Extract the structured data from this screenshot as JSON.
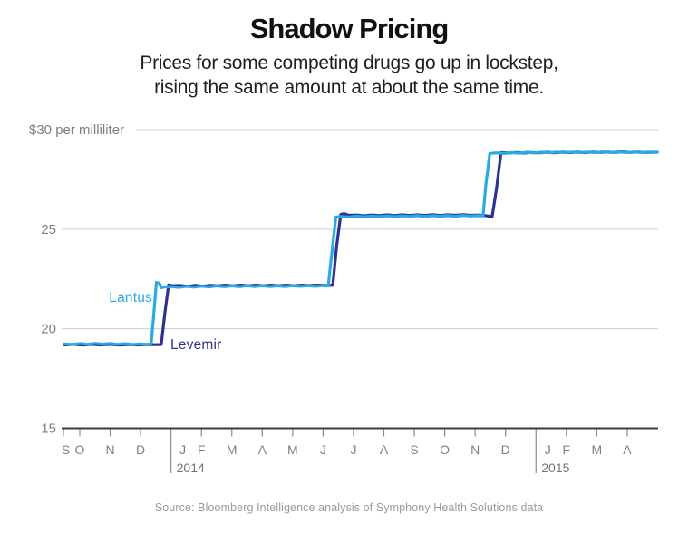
{
  "header": {
    "title": "Shadow Pricing",
    "subtitle_line1": "Prices for some competing drugs go up in lockstep,",
    "subtitle_line2": "rising the same amount at about the same time."
  },
  "source": "Source: Bloomberg Intelligence analysis of Symphony Health Solutions data",
  "chart_data": {
    "type": "line",
    "title": "Shadow Pricing",
    "ylabel": "$ per milliliter",
    "xlabel": "",
    "ylim": [
      15,
      30
    ],
    "grid": "horizontal",
    "legend_position": "inline-labels",
    "yticks": [
      {
        "value": 30,
        "label": "$30 per milliliter"
      },
      {
        "value": 25,
        "label": "25"
      },
      {
        "value": 20,
        "label": "20"
      },
      {
        "value": 15,
        "label": "15"
      }
    ],
    "x_axis": {
      "note": "months Sep 2013 - Apr 2015",
      "groups": [
        {
          "year": "",
          "months": [
            "S",
            "O",
            "N",
            "D"
          ]
        },
        {
          "year": "2014",
          "months": [
            "J",
            "F",
            "M",
            "A",
            "M",
            "J",
            "J",
            "A",
            "S",
            "O",
            "N",
            "D"
          ]
        },
        {
          "year": "2015",
          "months": [
            "J",
            "F",
            "M",
            "A"
          ]
        }
      ]
    },
    "series": [
      {
        "name": "Lantus",
        "color": "#29ABE2",
        "points": [
          [
            0.5,
            19.24
          ],
          [
            0.75,
            19.21
          ],
          [
            1.0,
            19.26
          ],
          [
            1.25,
            19.22
          ],
          [
            1.5,
            19.27
          ],
          [
            1.75,
            19.23
          ],
          [
            2.0,
            19.26
          ],
          [
            2.25,
            19.22
          ],
          [
            2.5,
            19.25
          ],
          [
            2.75,
            19.21
          ],
          [
            3.0,
            19.24
          ],
          [
            3.2,
            19.21
          ],
          [
            3.35,
            19.24
          ],
          [
            3.42,
            20.5
          ],
          [
            3.52,
            22.33
          ],
          [
            3.62,
            22.28
          ],
          [
            3.68,
            22.06
          ],
          [
            3.8,
            22.1
          ],
          [
            4.0,
            22.12
          ],
          [
            4.25,
            22.08
          ],
          [
            4.5,
            22.13
          ],
          [
            4.75,
            22.09
          ],
          [
            5.0,
            22.14
          ],
          [
            5.25,
            22.1
          ],
          [
            5.5,
            22.15
          ],
          [
            5.75,
            22.11
          ],
          [
            6.0,
            22.15
          ],
          [
            6.25,
            22.11
          ],
          [
            6.5,
            22.16
          ],
          [
            6.75,
            22.12
          ],
          [
            7.0,
            22.16
          ],
          [
            7.25,
            22.12
          ],
          [
            7.5,
            22.15
          ],
          [
            7.75,
            22.12
          ],
          [
            8.0,
            22.16
          ],
          [
            8.25,
            22.13
          ],
          [
            8.5,
            22.16
          ],
          [
            8.75,
            22.13
          ],
          [
            9.0,
            22.16
          ],
          [
            9.17,
            22.15
          ],
          [
            9.3,
            24.0
          ],
          [
            9.42,
            25.6
          ],
          [
            9.6,
            25.64
          ],
          [
            9.85,
            25.61
          ],
          [
            10.1,
            25.66
          ],
          [
            10.35,
            25.62
          ],
          [
            10.6,
            25.66
          ],
          [
            10.85,
            25.63
          ],
          [
            11.1,
            25.67
          ],
          [
            11.35,
            25.63
          ],
          [
            11.6,
            25.67
          ],
          [
            11.85,
            25.64
          ],
          [
            12.1,
            25.68
          ],
          [
            12.35,
            25.64
          ],
          [
            12.6,
            25.68
          ],
          [
            12.85,
            25.65
          ],
          [
            13.1,
            25.68
          ],
          [
            13.35,
            25.65
          ],
          [
            13.6,
            25.69
          ],
          [
            13.85,
            25.66
          ],
          [
            14.1,
            25.68
          ],
          [
            14.26,
            25.67
          ],
          [
            14.35,
            27.2
          ],
          [
            14.48,
            28.8
          ],
          [
            14.7,
            28.83
          ],
          [
            14.95,
            28.8
          ],
          [
            15.2,
            28.85
          ],
          [
            15.45,
            28.81
          ],
          [
            15.7,
            28.86
          ],
          [
            15.95,
            28.82
          ],
          [
            16.2,
            28.86
          ],
          [
            16.45,
            28.83
          ],
          [
            16.7,
            28.87
          ],
          [
            16.95,
            28.83
          ],
          [
            17.2,
            28.87
          ],
          [
            17.45,
            28.84
          ],
          [
            17.7,
            28.87
          ],
          [
            17.95,
            28.84
          ],
          [
            18.2,
            28.88
          ],
          [
            18.45,
            28.85
          ],
          [
            18.7,
            28.88
          ],
          [
            18.95,
            28.85
          ],
          [
            19.2,
            28.87
          ],
          [
            19.45,
            28.85
          ],
          [
            19.7,
            28.87
          ],
          [
            19.99,
            28.86
          ]
        ]
      },
      {
        "name": "Levemir",
        "color": "#2E3192",
        "points": [
          [
            0.5,
            19.19
          ],
          [
            0.8,
            19.22
          ],
          [
            1.1,
            19.18
          ],
          [
            1.4,
            19.22
          ],
          [
            1.7,
            19.19
          ],
          [
            2.0,
            19.22
          ],
          [
            2.3,
            19.18
          ],
          [
            2.6,
            19.21
          ],
          [
            2.9,
            19.19
          ],
          [
            3.2,
            19.21
          ],
          [
            3.5,
            19.2
          ],
          [
            3.68,
            19.21
          ],
          [
            3.8,
            20.8
          ],
          [
            3.92,
            22.2
          ],
          [
            4.05,
            22.16
          ],
          [
            4.3,
            22.17
          ],
          [
            4.55,
            22.13
          ],
          [
            4.8,
            22.18
          ],
          [
            5.05,
            22.14
          ],
          [
            5.3,
            22.18
          ],
          [
            5.55,
            22.15
          ],
          [
            5.8,
            22.19
          ],
          [
            6.05,
            22.15
          ],
          [
            6.3,
            22.19
          ],
          [
            6.55,
            22.16
          ],
          [
            6.8,
            22.19
          ],
          [
            7.05,
            22.16
          ],
          [
            7.3,
            22.19
          ],
          [
            7.55,
            22.16
          ],
          [
            7.8,
            22.19
          ],
          [
            8.05,
            22.16
          ],
          [
            8.3,
            22.19
          ],
          [
            8.55,
            22.17
          ],
          [
            8.8,
            22.19
          ],
          [
            9.05,
            22.18
          ],
          [
            9.32,
            22.18
          ],
          [
            9.45,
            24.2
          ],
          [
            9.58,
            25.75
          ],
          [
            9.7,
            25.78
          ],
          [
            9.85,
            25.7
          ],
          [
            10.1,
            25.71
          ],
          [
            10.35,
            25.67
          ],
          [
            10.6,
            25.71
          ],
          [
            10.85,
            25.68
          ],
          [
            11.1,
            25.72
          ],
          [
            11.35,
            25.68
          ],
          [
            11.6,
            25.72
          ],
          [
            11.85,
            25.69
          ],
          [
            12.1,
            25.72
          ],
          [
            12.35,
            25.69
          ],
          [
            12.6,
            25.73
          ],
          [
            12.85,
            25.69
          ],
          [
            13.1,
            25.72
          ],
          [
            13.35,
            25.7
          ],
          [
            13.6,
            25.73
          ],
          [
            13.85,
            25.7
          ],
          [
            14.1,
            25.71
          ],
          [
            14.35,
            25.68
          ],
          [
            14.56,
            25.63
          ],
          [
            14.7,
            27.0
          ],
          [
            14.85,
            28.84
          ],
          [
            15.1,
            28.82
          ],
          [
            15.35,
            28.85
          ],
          [
            15.6,
            28.82
          ],
          [
            15.85,
            28.85
          ],
          [
            16.1,
            28.83
          ],
          [
            16.35,
            28.86
          ],
          [
            16.6,
            28.83
          ],
          [
            16.85,
            28.86
          ],
          [
            17.1,
            28.84
          ],
          [
            17.35,
            28.87
          ],
          [
            17.6,
            28.84
          ],
          [
            17.85,
            28.87
          ],
          [
            18.1,
            28.85
          ],
          [
            18.35,
            28.87
          ],
          [
            18.6,
            28.85
          ],
          [
            18.85,
            28.88
          ],
          [
            19.1,
            28.85
          ],
          [
            19.35,
            28.87
          ],
          [
            19.6,
            28.85
          ],
          [
            19.99,
            28.86
          ]
        ]
      }
    ]
  }
}
